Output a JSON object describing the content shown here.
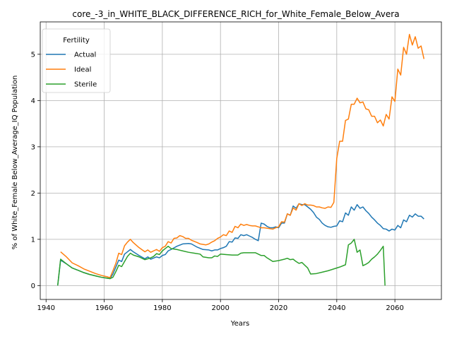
{
  "chart_data": {
    "type": "line",
    "title": "core_-3_in_WHITE_BLACK_DIFFERENCE_RICH_for_White_Female_Below_Avera",
    "xlabel": "Years",
    "ylabel": "% of White_Female Below_Average_IQ Population",
    "xlim": [
      1938,
      2076
    ],
    "ylim": [
      -0.3,
      5.7
    ],
    "xticks": [
      1940,
      1960,
      1980,
      2000,
      2020,
      2040,
      2060
    ],
    "yticks": [
      0,
      1,
      2,
      3,
      4,
      5
    ],
    "grid": true,
    "legend": {
      "title": "Fertility",
      "placement": "top-left"
    },
    "series": [
      {
        "name": "Actual",
        "color": "#1f77b4",
        "points": [
          [
            1944,
            0.0
          ],
          [
            1945,
            0.55
          ],
          [
            1947,
            0.47
          ],
          [
            1949,
            0.38
          ],
          [
            1951,
            0.33
          ],
          [
            1953,
            0.28
          ],
          [
            1955,
            0.24
          ],
          [
            1957,
            0.21
          ],
          [
            1959,
            0.18
          ],
          [
            1961,
            0.16
          ],
          [
            1962,
            0.15
          ],
          [
            1963,
            0.25
          ],
          [
            1965,
            0.55
          ],
          [
            1966,
            0.52
          ],
          [
            1967,
            0.68
          ],
          [
            1968,
            0.73
          ],
          [
            1969,
            0.78
          ],
          [
            1970,
            0.73
          ],
          [
            1972,
            0.65
          ],
          [
            1974,
            0.58
          ],
          [
            1975,
            0.62
          ],
          [
            1976,
            0.57
          ],
          [
            1978,
            0.62
          ],
          [
            1979,
            0.6
          ],
          [
            1980,
            0.65
          ],
          [
            1981,
            0.67
          ],
          [
            1982,
            0.75
          ],
          [
            1983,
            0.78
          ],
          [
            1985,
            0.85
          ],
          [
            1987,
            0.9
          ],
          [
            1989,
            0.91
          ],
          [
            1990,
            0.9
          ],
          [
            1992,
            0.83
          ],
          [
            1994,
            0.78
          ],
          [
            1996,
            0.77
          ],
          [
            1997,
            0.75
          ],
          [
            1998,
            0.77
          ],
          [
            1999,
            0.77
          ],
          [
            2000,
            0.8
          ],
          [
            2001,
            0.82
          ],
          [
            2002,
            0.85
          ],
          [
            2003,
            0.95
          ],
          [
            2004,
            0.94
          ],
          [
            2005,
            1.03
          ],
          [
            2006,
            1.02
          ],
          [
            2007,
            1.1
          ],
          [
            2008,
            1.08
          ],
          [
            2009,
            1.1
          ],
          [
            2010,
            1.07
          ],
          [
            2011,
            1.04
          ],
          [
            2012,
            1.0
          ],
          [
            2013,
            0.97
          ],
          [
            2014,
            1.35
          ],
          [
            2015,
            1.33
          ],
          [
            2016,
            1.28
          ],
          [
            2017,
            1.25
          ],
          [
            2018,
            1.25
          ],
          [
            2019,
            1.27
          ],
          [
            2020,
            1.25
          ],
          [
            2021,
            1.35
          ],
          [
            2022,
            1.35
          ],
          [
            2023,
            1.55
          ],
          [
            2024,
            1.52
          ],
          [
            2025,
            1.72
          ],
          [
            2026,
            1.67
          ],
          [
            2027,
            1.77
          ],
          [
            2028,
            1.75
          ],
          [
            2029,
            1.75
          ],
          [
            2030,
            1.7
          ],
          [
            2031,
            1.65
          ],
          [
            2032,
            1.58
          ],
          [
            2033,
            1.48
          ],
          [
            2034,
            1.43
          ],
          [
            2035,
            1.35
          ],
          [
            2036,
            1.3
          ],
          [
            2037,
            1.27
          ],
          [
            2038,
            1.26
          ],
          [
            2039,
            1.28
          ],
          [
            2040,
            1.29
          ],
          [
            2041,
            1.4
          ],
          [
            2042,
            1.38
          ],
          [
            2043,
            1.57
          ],
          [
            2044,
            1.52
          ],
          [
            2045,
            1.7
          ],
          [
            2046,
            1.63
          ],
          [
            2047,
            1.75
          ],
          [
            2048,
            1.67
          ],
          [
            2049,
            1.7
          ],
          [
            2050,
            1.62
          ],
          [
            2051,
            1.56
          ],
          [
            2052,
            1.48
          ],
          [
            2053,
            1.42
          ],
          [
            2054,
            1.35
          ],
          [
            2055,
            1.3
          ],
          [
            2056,
            1.23
          ],
          [
            2057,
            1.22
          ],
          [
            2058,
            1.18
          ],
          [
            2059,
            1.22
          ],
          [
            2060,
            1.2
          ],
          [
            2061,
            1.3
          ],
          [
            2062,
            1.25
          ],
          [
            2063,
            1.42
          ],
          [
            2064,
            1.38
          ],
          [
            2065,
            1.52
          ],
          [
            2066,
            1.48
          ],
          [
            2067,
            1.55
          ],
          [
            2068,
            1.5
          ],
          [
            2069,
            1.5
          ],
          [
            2070,
            1.44
          ]
        ]
      },
      {
        "name": "Ideal",
        "color": "#ff7f0e",
        "points": [
          [
            1945,
            0.73
          ],
          [
            1947,
            0.62
          ],
          [
            1949,
            0.49
          ],
          [
            1951,
            0.43
          ],
          [
            1953,
            0.36
          ],
          [
            1955,
            0.31
          ],
          [
            1957,
            0.26
          ],
          [
            1959,
            0.22
          ],
          [
            1961,
            0.19
          ],
          [
            1962,
            0.17
          ],
          [
            1963,
            0.32
          ],
          [
            1964,
            0.48
          ],
          [
            1965,
            0.7
          ],
          [
            1966,
            0.67
          ],
          [
            1967,
            0.86
          ],
          [
            1968,
            0.94
          ],
          [
            1969,
            1.0
          ],
          [
            1970,
            0.93
          ],
          [
            1972,
            0.82
          ],
          [
            1974,
            0.73
          ],
          [
            1975,
            0.77
          ],
          [
            1976,
            0.72
          ],
          [
            1978,
            0.78
          ],
          [
            1979,
            0.74
          ],
          [
            1980,
            0.82
          ],
          [
            1981,
            0.85
          ],
          [
            1982,
            0.95
          ],
          [
            1983,
            0.92
          ],
          [
            1984,
            1.02
          ],
          [
            1985,
            1.03
          ],
          [
            1986,
            1.08
          ],
          [
            1987,
            1.06
          ],
          [
            1988,
            1.02
          ],
          [
            1989,
            1.02
          ],
          [
            1990,
            0.98
          ],
          [
            1992,
            0.93
          ],
          [
            1993,
            0.9
          ],
          [
            1995,
            0.88
          ],
          [
            1996,
            0.9
          ],
          [
            1997,
            0.94
          ],
          [
            1998,
            0.97
          ],
          [
            1999,
            1.02
          ],
          [
            2000,
            1.05
          ],
          [
            2001,
            1.1
          ],
          [
            2002,
            1.08
          ],
          [
            2003,
            1.18
          ],
          [
            2004,
            1.15
          ],
          [
            2005,
            1.28
          ],
          [
            2006,
            1.25
          ],
          [
            2007,
            1.33
          ],
          [
            2008,
            1.3
          ],
          [
            2009,
            1.32
          ],
          [
            2010,
            1.3
          ],
          [
            2011,
            1.29
          ],
          [
            2012,
            1.29
          ],
          [
            2013,
            1.27
          ],
          [
            2014,
            1.25
          ],
          [
            2015,
            1.25
          ],
          [
            2016,
            1.24
          ],
          [
            2017,
            1.23
          ],
          [
            2018,
            1.22
          ],
          [
            2019,
            1.25
          ],
          [
            2020,
            1.27
          ],
          [
            2021,
            1.38
          ],
          [
            2022,
            1.37
          ],
          [
            2023,
            1.55
          ],
          [
            2024,
            1.52
          ],
          [
            2025,
            1.68
          ],
          [
            2026,
            1.63
          ],
          [
            2027,
            1.77
          ],
          [
            2028,
            1.73
          ],
          [
            2029,
            1.77
          ],
          [
            2030,
            1.74
          ],
          [
            2031,
            1.74
          ],
          [
            2032,
            1.73
          ],
          [
            2033,
            1.7
          ],
          [
            2034,
            1.7
          ],
          [
            2035,
            1.68
          ],
          [
            2036,
            1.67
          ],
          [
            2037,
            1.7
          ],
          [
            2038,
            1.69
          ],
          [
            2039,
            1.8
          ],
          [
            2040,
            2.75
          ],
          [
            2041,
            3.12
          ],
          [
            2042,
            3.12
          ],
          [
            2043,
            3.57
          ],
          [
            2044,
            3.6
          ],
          [
            2045,
            3.92
          ],
          [
            2046,
            3.92
          ],
          [
            2047,
            4.05
          ],
          [
            2048,
            3.95
          ],
          [
            2049,
            3.97
          ],
          [
            2050,
            3.82
          ],
          [
            2051,
            3.8
          ],
          [
            2052,
            3.66
          ],
          [
            2053,
            3.66
          ],
          [
            2054,
            3.52
          ],
          [
            2055,
            3.58
          ],
          [
            2056,
            3.45
          ],
          [
            2057,
            3.7
          ],
          [
            2058,
            3.6
          ],
          [
            2059,
            4.08
          ],
          [
            2060,
            3.98
          ],
          [
            2061,
            4.68
          ],
          [
            2062,
            4.55
          ],
          [
            2063,
            5.15
          ],
          [
            2064,
            5.0
          ],
          [
            2065,
            5.43
          ],
          [
            2066,
            5.2
          ],
          [
            2067,
            5.38
          ],
          [
            2068,
            5.13
          ],
          [
            2069,
            5.18
          ],
          [
            2070,
            4.9
          ]
        ]
      },
      {
        "name": "Sterile",
        "color": "#2ca02c",
        "points": [
          [
            1944,
            0.0
          ],
          [
            1945,
            0.57
          ],
          [
            1947,
            0.47
          ],
          [
            1949,
            0.38
          ],
          [
            1951,
            0.33
          ],
          [
            1953,
            0.28
          ],
          [
            1955,
            0.24
          ],
          [
            1957,
            0.21
          ],
          [
            1959,
            0.18
          ],
          [
            1961,
            0.16
          ],
          [
            1962,
            0.15
          ],
          [
            1963,
            0.18
          ],
          [
            1964,
            0.3
          ],
          [
            1965,
            0.44
          ],
          [
            1966,
            0.41
          ],
          [
            1967,
            0.52
          ],
          [
            1968,
            0.63
          ],
          [
            1969,
            0.7
          ],
          [
            1970,
            0.66
          ],
          [
            1972,
            0.62
          ],
          [
            1974,
            0.56
          ],
          [
            1975,
            0.58
          ],
          [
            1976,
            0.6
          ],
          [
            1977,
            0.63
          ],
          [
            1978,
            0.69
          ],
          [
            1979,
            0.67
          ],
          [
            1980,
            0.75
          ],
          [
            1981,
            0.8
          ],
          [
            1982,
            0.85
          ],
          [
            1983,
            0.8
          ],
          [
            1985,
            0.78
          ],
          [
            1987,
            0.75
          ],
          [
            1989,
            0.72
          ],
          [
            1991,
            0.7
          ],
          [
            1993,
            0.68
          ],
          [
            1994,
            0.62
          ],
          [
            1996,
            0.6
          ],
          [
            1997,
            0.6
          ],
          [
            1998,
            0.64
          ],
          [
            1999,
            0.63
          ],
          [
            2000,
            0.68
          ],
          [
            2002,
            0.67
          ],
          [
            2004,
            0.66
          ],
          [
            2006,
            0.66
          ],
          [
            2007,
            0.7
          ],
          [
            2008,
            0.71
          ],
          [
            2010,
            0.71
          ],
          [
            2012,
            0.71
          ],
          [
            2013,
            0.68
          ],
          [
            2014,
            0.65
          ],
          [
            2015,
            0.65
          ],
          [
            2016,
            0.6
          ],
          [
            2017,
            0.56
          ],
          [
            2018,
            0.52
          ],
          [
            2020,
            0.54
          ],
          [
            2022,
            0.57
          ],
          [
            2023,
            0.59
          ],
          [
            2024,
            0.56
          ],
          [
            2025,
            0.57
          ],
          [
            2026,
            0.52
          ],
          [
            2027,
            0.48
          ],
          [
            2028,
            0.5
          ],
          [
            2029,
            0.44
          ],
          [
            2030,
            0.38
          ],
          [
            2031,
            0.25
          ],
          [
            2033,
            0.26
          ],
          [
            2035,
            0.29
          ],
          [
            2037,
            0.32
          ],
          [
            2039,
            0.36
          ],
          [
            2041,
            0.4
          ],
          [
            2043,
            0.45
          ],
          [
            2044,
            0.88
          ],
          [
            2045,
            0.92
          ],
          [
            2046,
            1.0
          ],
          [
            2047,
            0.72
          ],
          [
            2048,
            0.77
          ],
          [
            2049,
            0.43
          ],
          [
            2050,
            0.46
          ],
          [
            2051,
            0.5
          ],
          [
            2052,
            0.57
          ],
          [
            2053,
            0.62
          ],
          [
            2054,
            0.68
          ],
          [
            2055,
            0.76
          ],
          [
            2056,
            0.85
          ],
          [
            2056.6,
            0.0
          ]
        ]
      }
    ]
  }
}
